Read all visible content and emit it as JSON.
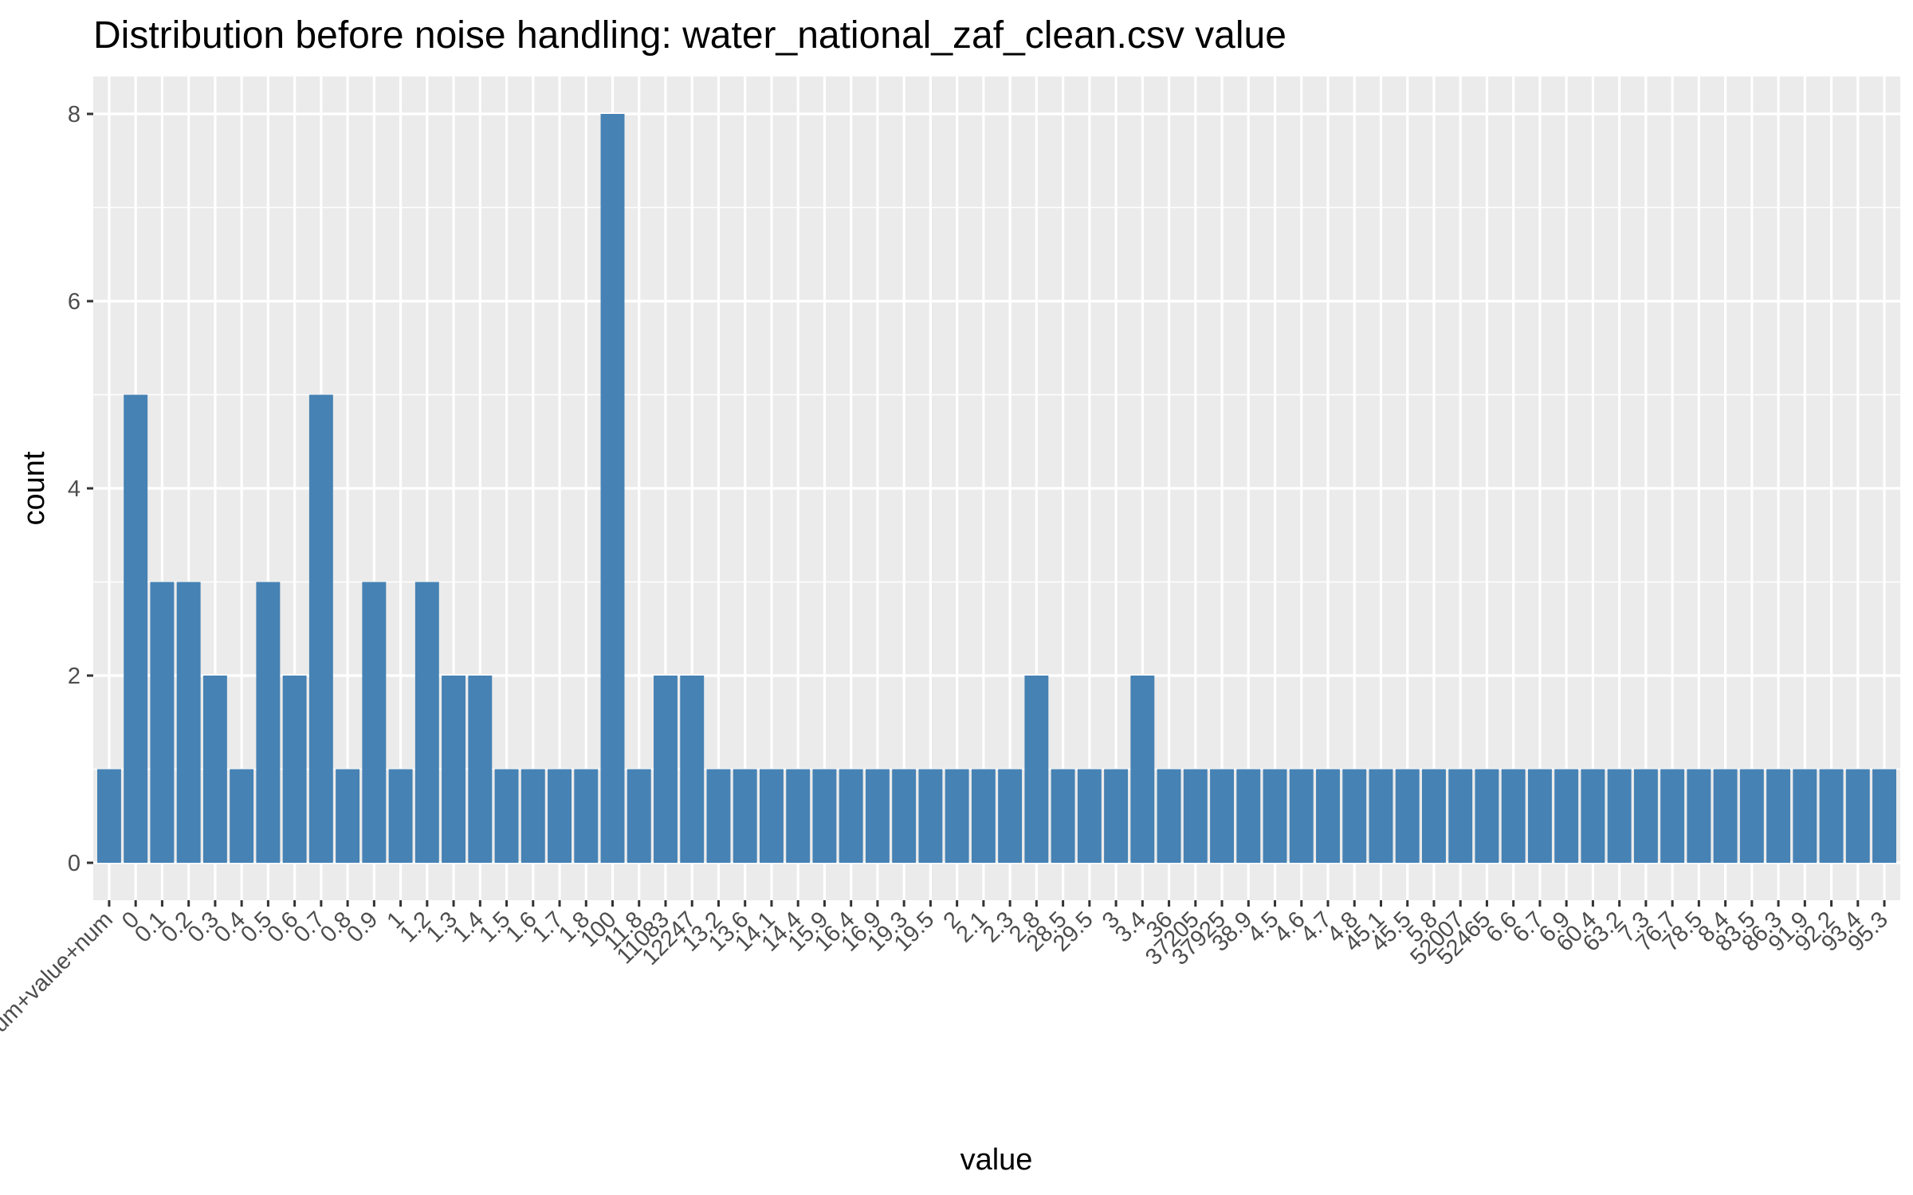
{
  "chart_data": {
    "type": "bar",
    "title": "Distribution before noise handling: water_national_zaf_clean.csv value",
    "xlabel": "value",
    "ylabel": "count",
    "ylim": [
      -0.4,
      8.4
    ],
    "yticks": [
      0,
      2,
      4,
      6,
      8
    ],
    "grid": true,
    "bar_color": "#4682B4",
    "panel_color": "#EBEBEB",
    "grid_color": "#FFFFFF",
    "categories": [
      "num+value+num",
      "0",
      "0.1",
      "0.2",
      "0.3",
      "0.4",
      "0.5",
      "0.6",
      "0.7",
      "0.8",
      "0.9",
      "1",
      "1.2",
      "1.3",
      "1.4",
      "1.5",
      "1.6",
      "1.7",
      "1.8",
      "100",
      "11.8",
      "11083",
      "12247",
      "13.2",
      "13.6",
      "14.1",
      "14.4",
      "15.9",
      "16.4",
      "16.9",
      "19.3",
      "19.5",
      "2",
      "2.1",
      "2.3",
      "2.8",
      "28.5",
      "29.5",
      "3",
      "3.4",
      "36",
      "37205",
      "37925",
      "38.9",
      "4.5",
      "4.6",
      "4.7",
      "4.8",
      "45.1",
      "45.5",
      "5.8",
      "52007",
      "52465",
      "6.6",
      "6.7",
      "6.9",
      "60.4",
      "63.2",
      "7.3",
      "76.7",
      "78.5",
      "8.4",
      "83.5",
      "86.3",
      "91.9",
      "92.2",
      "93.4",
      "95.3"
    ],
    "values": [
      1,
      5,
      3,
      3,
      2,
      1,
      3,
      2,
      5,
      1,
      3,
      1,
      3,
      2,
      2,
      1,
      1,
      1,
      1,
      8,
      1,
      2,
      2,
      1,
      1,
      1,
      1,
      1,
      1,
      1,
      1,
      1,
      1,
      1,
      1,
      2,
      1,
      1,
      1,
      2,
      1,
      1,
      1,
      1,
      1,
      1,
      1,
      1,
      1,
      1,
      1,
      1,
      1,
      1,
      1,
      1,
      1,
      1,
      1,
      1,
      1,
      1,
      1,
      1,
      1,
      1,
      1,
      1
    ]
  }
}
